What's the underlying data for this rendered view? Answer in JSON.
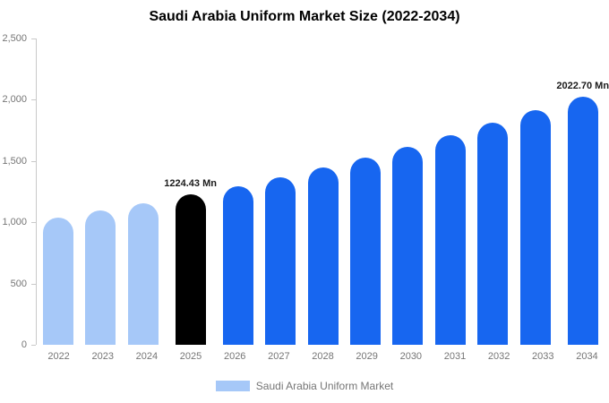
{
  "chart_data": {
    "type": "bar",
    "title": "Saudi Arabia Uniform Market Size (2022-2034)",
    "categories": [
      "2022",
      "2023",
      "2024",
      "2025",
      "2026",
      "2027",
      "2028",
      "2029",
      "2030",
      "2031",
      "2032",
      "2033",
      "2034"
    ],
    "values": [
      1035,
      1095,
      1158,
      1224.43,
      1295,
      1369,
      1448,
      1531,
      1618,
      1711,
      1810,
      1913,
      2022.7
    ],
    "unit": "Mn",
    "data_labels": [
      "",
      "",
      "",
      "1224.43 Mn",
      "",
      "",
      "",
      "",
      "",
      "",
      "",
      "",
      "2022.70 Mn"
    ],
    "bar_colors": [
      "#A6C8F8",
      "#A6C8F8",
      "#A6C8F8",
      "#000000",
      "#1766F0",
      "#1766F0",
      "#1766F0",
      "#1766F0",
      "#1766F0",
      "#1766F0",
      "#1766F0",
      "#1766F0",
      "#1766F0"
    ],
    "xlabel": "",
    "ylabel": "",
    "ylim": [
      0,
      2500
    ],
    "ytick_labels": [
      "2,500",
      "2,000",
      "1,500",
      "1,000",
      "500",
      "0"
    ],
    "grid": false,
    "legend": {
      "position": "bottom",
      "label": "Saudi Arabia Uniform Market",
      "swatch_color": "#A6C8F8"
    }
  }
}
